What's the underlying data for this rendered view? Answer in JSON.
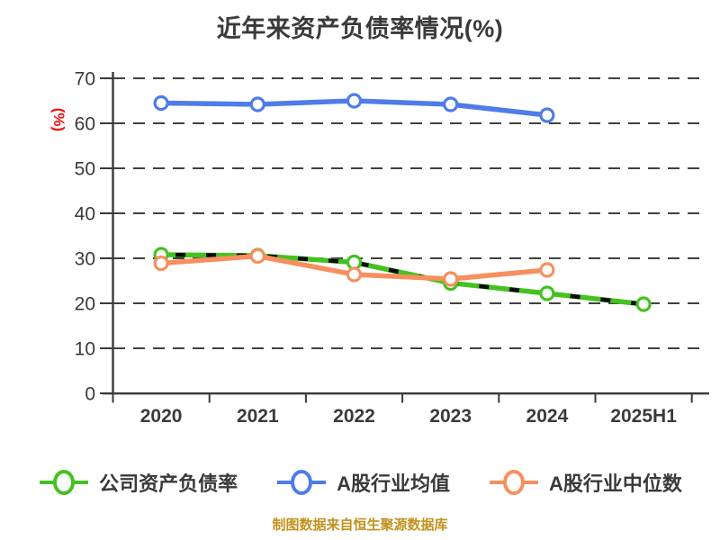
{
  "title": "近年来资产负债率情况(%)",
  "footer": "制图数据来自恒生聚源数据库",
  "y_axis": {
    "unit_label": "(%)",
    "unit_label_color": "#ee1111",
    "ticks": [
      "0",
      "10",
      "20",
      "30",
      "40",
      "50",
      "60",
      "70"
    ],
    "min": 0,
    "max": 70
  },
  "x_axis": {
    "categories": [
      "2020",
      "2021",
      "2022",
      "2023",
      "2024",
      "2025H1"
    ]
  },
  "legend": {
    "items": [
      {
        "label": "公司资产负债率",
        "color": "#44c220"
      },
      {
        "label": "A股行业均值",
        "color": "#4e7ce8"
      },
      {
        "label": "A股行业中位数",
        "color": "#f78f5e"
      }
    ]
  },
  "colors": {
    "text_dark": "#3a3a3a",
    "axis": "#3a3a3a",
    "gridline": "#404040",
    "marker_fill": "#ffffff",
    "company_green": "#44c220",
    "industry_mean_blue": "#4e7ce8",
    "industry_median_orange": "#f78f5e",
    "overlay_dash_black": "#0a0a0a",
    "ylabel_red": "#ee1111",
    "footer_gold": "#c2921e"
  },
  "chart_data": {
    "type": "line",
    "title": "近年来资产负债率情况(%)",
    "ylabel": "(%)",
    "ylim": [
      0,
      70
    ],
    "y_tick_step": 10,
    "grid": "dashed-horizontal",
    "legend_position": "bottom",
    "categories": [
      "2020",
      "2021",
      "2022",
      "2023",
      "2024",
      "2025H1"
    ],
    "series": [
      {
        "name": "公司资产负债率",
        "color": "#44c220",
        "overlay_black_dash": true,
        "values": [
          30.8,
          30.6,
          29.1,
          24.5,
          22.2,
          19.8
        ]
      },
      {
        "name": "A股行业均值",
        "color": "#4e7ce8",
        "overlay_black_dash": false,
        "values": [
          64.5,
          64.2,
          65.0,
          64.2,
          61.8,
          null
        ]
      },
      {
        "name": "A股行业中位数",
        "color": "#f78f5e",
        "overlay_black_dash": false,
        "values": [
          28.9,
          30.5,
          26.4,
          25.4,
          27.4,
          null
        ]
      }
    ]
  }
}
